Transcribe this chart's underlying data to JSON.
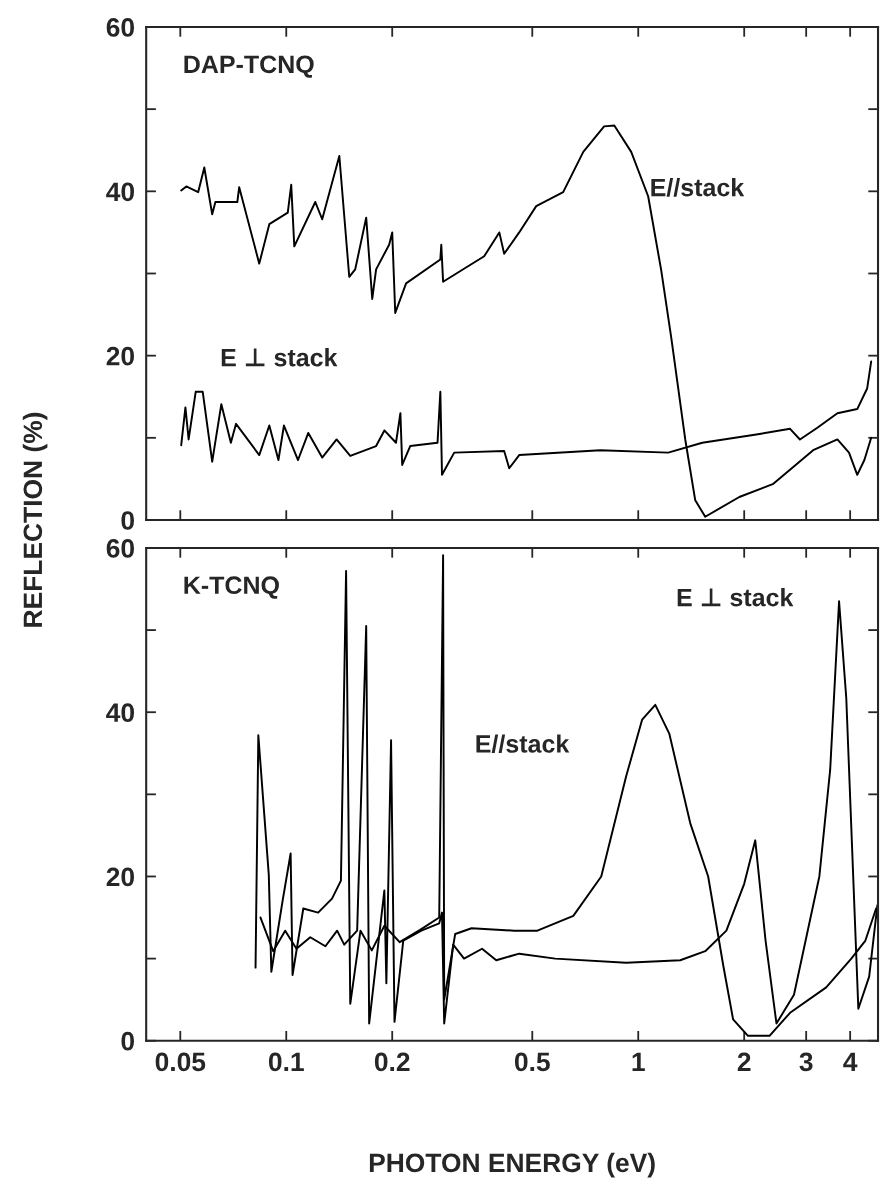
{
  "chart_data": [
    {
      "type": "line",
      "title": "DAP-TCNQ",
      "ylabel": "REFLECTION (%)",
      "log": "x",
      "xlim": [
        0.04,
        4.8
      ],
      "ylim": [
        0,
        60
      ],
      "xticks": [
        {
          "value": 0.05,
          "label": null
        },
        {
          "value": 0.1,
          "label": null
        },
        {
          "value": 0.2,
          "label": null
        },
        {
          "value": 0.5,
          "label": null
        },
        {
          "value": 1,
          "label": null
        },
        {
          "value": 2,
          "label": null
        },
        {
          "value": 3,
          "label": null
        },
        {
          "value": 4,
          "label": null
        }
      ],
      "yticks": [
        0,
        {
          "value": 10,
          "label": null
        },
        20,
        {
          "value": 30,
          "label": null
        },
        40,
        {
          "value": 50,
          "label": null
        },
        60
      ],
      "tick_labels": "y",
      "grid": false,
      "series": [
        {
          "color": "#000000",
          "x": [
            0.0503,
            0.052,
            0.0562,
            0.0585,
            0.0616,
            0.0629,
            0.0726,
            0.0735,
            0.0838,
            0.0895,
            0.101,
            0.1033,
            0.1054,
            0.1209,
            0.1265,
            0.1415,
            0.151,
            0.157,
            0.1687,
            0.1755,
            0.18,
            0.196,
            0.2,
            0.204,
            0.219,
            0.274,
            0.2757,
            0.279,
            0.365,
            0.403,
            0.416,
            0.459,
            0.513,
            0.612,
            0.698,
            0.8,
            0.855,
            0.955,
            1.067,
            1.162,
            1.241,
            1.36,
            1.452,
            1.55,
            1.937,
            2.42,
            3.14,
            3.68,
            3.97,
            4.19,
            4.39,
            4.59
          ],
          "values": [
            40.1,
            40.6,
            39.9,
            42.9,
            37.2,
            38.7,
            38.7,
            40.5,
            31.2,
            36.0,
            37.4,
            40.8,
            33.3,
            38.7,
            36.6,
            44.3,
            29.6,
            30.5,
            36.8,
            26.9,
            30.5,
            33.5,
            35.0,
            25.2,
            28.8,
            31.7,
            33.5,
            29.0,
            32.1,
            35.0,
            32.4,
            35.0,
            38.2,
            39.9,
            44.8,
            47.9,
            48.0,
            44.8,
            39.4,
            30.4,
            22.2,
            9.8,
            2.4,
            0.4,
            2.8,
            4.4,
            8.5,
            9.8,
            8.2,
            5.5,
            7.3,
            10.0
          ]
        },
        {
          "color": "#000000",
          "x": [
            0.0503,
            0.0517,
            0.0528,
            0.0553,
            0.0579,
            0.0616,
            0.0654,
            0.0696,
            0.072,
            0.0838,
            0.0895,
            0.095,
            0.0985,
            0.108,
            0.1155,
            0.1265,
            0.139,
            0.152,
            0.18,
            0.19,
            0.205,
            0.211,
            0.2135,
            0.225,
            0.269,
            0.274,
            0.277,
            0.3,
            0.416,
            0.43,
            0.459,
            0.78,
            1.217,
            1.52,
            2.165,
            2.7,
            2.88,
            3.22,
            3.68,
            4.19,
            4.47,
            4.59
          ],
          "values": [
            9.1,
            13.7,
            9.8,
            15.6,
            15.6,
            7.1,
            14.1,
            9.4,
            11.7,
            7.9,
            11.5,
            7.3,
            11.5,
            7.3,
            10.6,
            7.6,
            9.8,
            7.8,
            9.0,
            10.9,
            9.4,
            13.0,
            6.7,
            9.0,
            9.4,
            15.6,
            5.5,
            8.2,
            8.4,
            6.3,
            7.9,
            8.5,
            8.2,
            9.4,
            10.4,
            11.1,
            9.8,
            11.2,
            13.0,
            13.5,
            16.0,
            19.3
          ]
        }
      ],
      "annotations": [
        "E//stack",
        "E ⊥ stack"
      ]
    },
    {
      "type": "line",
      "title": "K-TCNQ",
      "xlabel": "PHOTON ENERGY (eV)",
      "log": "x",
      "xlim": [
        0.04,
        4.8
      ],
      "ylim": [
        0,
        60
      ],
      "xticks": [
        0.05,
        0.1,
        0.2,
        0.5,
        1,
        2,
        3,
        4
      ],
      "yticks": [
        0,
        {
          "value": 10,
          "label": null
        },
        20,
        {
          "value": 30,
          "label": null
        },
        40,
        {
          "value": 50,
          "label": null
        },
        60
      ],
      "grid": false,
      "series": [
        {
          "color": "#000000",
          "x": [
            0.0818,
            0.0833,
            0.0892,
            0.0907,
            0.0976,
            0.1029,
            0.1042,
            0.1118,
            0.1232,
            0.1349,
            0.143,
            0.1479,
            0.152,
            0.1625,
            0.175,
            0.19,
            0.21,
            0.24,
            0.272,
            0.279,
            0.281,
            0.302,
            0.336,
            0.444,
            0.517,
            0.654,
            0.785,
            0.924,
            1.026,
            1.118,
            1.225,
            1.405,
            1.58,
            1.745,
            1.86,
            2.05,
            2.36,
            2.7,
            3.42,
            4.03,
            4.42,
            4.74
          ],
          "values": [
            8.9,
            37.2,
            20.2,
            8.4,
            17.0,
            22.8,
            8.0,
            16.1,
            15.6,
            17.3,
            19.5,
            57.2,
            4.5,
            13.4,
            11.0,
            14.0,
            12.0,
            13.5,
            15.0,
            59.1,
            5.0,
            13.0,
            13.7,
            13.4,
            13.4,
            15.2,
            20.0,
            32.2,
            39.1,
            40.9,
            37.4,
            26.5,
            20.0,
            9.1,
            2.6,
            0.6,
            0.6,
            3.4,
            6.5,
            10.0,
            12.2,
            16.1
          ]
        },
        {
          "color": "#000000",
          "x": [
            0.0845,
            0.0918,
            0.0993,
            0.1069,
            0.117,
            0.1292,
            0.1395,
            0.1461,
            0.159,
            0.1687,
            0.172,
            0.19,
            0.1925,
            0.1985,
            0.203,
            0.215,
            0.242,
            0.272,
            0.277,
            0.281,
            0.298,
            0.32,
            0.36,
            0.395,
            0.459,
            0.581,
            0.924,
            1.316,
            1.55,
            1.78,
            2.0,
            2.15,
            2.3,
            2.47,
            2.77,
            3.27,
            3.51,
            3.72,
            3.9,
            4.22,
            4.53,
            4.78
          ],
          "values": [
            15.0,
            10.9,
            13.4,
            11.2,
            12.6,
            11.5,
            13.4,
            11.7,
            13.4,
            50.5,
            2.1,
            18.3,
            7.0,
            36.6,
            2.3,
            12.2,
            13.4,
            14.3,
            15.6,
            2.1,
            11.7,
            10.0,
            11.2,
            9.8,
            10.6,
            10.0,
            9.5,
            9.8,
            10.9,
            13.4,
            19.1,
            24.4,
            12.2,
            2.1,
            5.6,
            20.0,
            33.0,
            53.5,
            41.7,
            3.9,
            7.8,
            16.5
          ]
        }
      ],
      "annotations": [
        "E//stack",
        "E ⊥ stack"
      ]
    }
  ]
}
